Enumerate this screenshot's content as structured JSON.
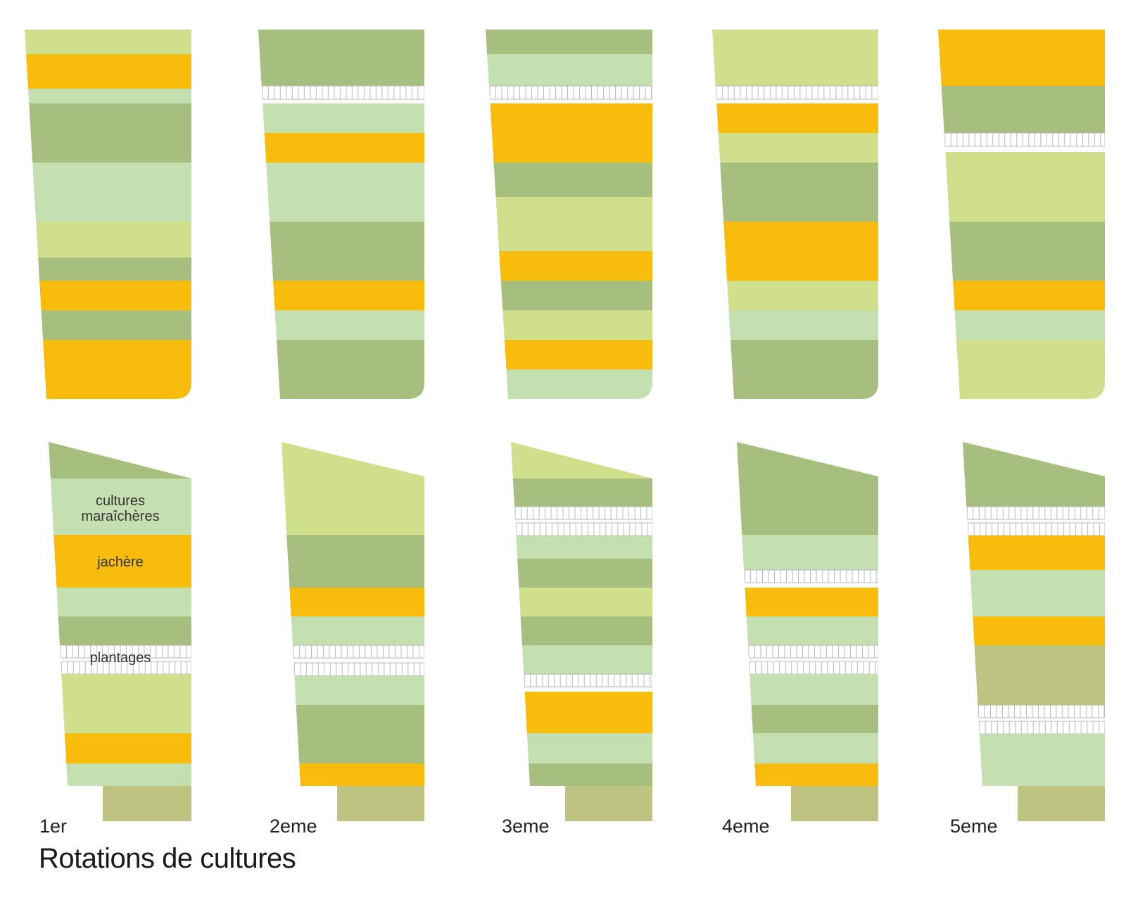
{
  "title": "Rotations de cultures",
  "colors": {
    "dark_green": "#a6bf7f",
    "light_green": "#c5e0b0",
    "lime": "#d0df8c",
    "orange": "#f8bd0c",
    "olive": "#bfc381",
    "plantage_bg": "#ffffff",
    "plantage_line": "#b9b9b9"
  },
  "labels": {
    "cultures": "cultures",
    "maraicheres": "maraîchères",
    "jachere": "jachère",
    "plantages": "plantages"
  },
  "rotations": [
    {
      "label": "1er"
    },
    {
      "label": "2eme"
    },
    {
      "label": "3eme"
    },
    {
      "label": "4eme"
    },
    {
      "label": "5eme"
    }
  ]
}
